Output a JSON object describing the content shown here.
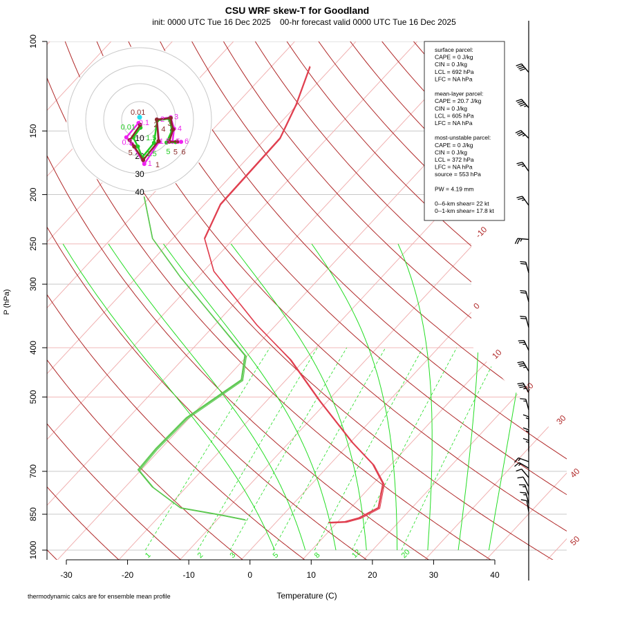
{
  "chart_data": {
    "type": "line",
    "title": "CSU WRF skew-T for Goodland",
    "subtitle": "init: 0000 UTC Tue 16 Dec 2025    00-hr forecast valid 0000 UTC Tue 16 Dec 2025",
    "xlabel": "Temperature (C)",
    "ylabel": "P (hPa)",
    "y_scale": "log",
    "ylim": [
      1000,
      100
    ],
    "x_ticks": [
      "-30",
      "-20",
      "-10",
      "0",
      "10",
      "20",
      "30",
      "40"
    ],
    "y_ticks": [
      "100",
      "150",
      "200",
      "250",
      "300",
      "400",
      "500",
      "700",
      "850",
      "1000"
    ],
    "isotherm_labels": [
      "-10",
      "0",
      "10",
      "20",
      "30",
      "40",
      "50"
    ],
    "mixing_ratio_labels": [
      "1",
      "2",
      "3",
      "5",
      "8",
      "12",
      "20"
    ],
    "footnote": "thermodynamic calcs are for ensemble mean profile",
    "colors": {
      "temperature": "#e04050",
      "dewpoint": "#5cc850",
      "isotherm": "#f0b0b0",
      "dry_adiabat": "#b02828",
      "moist_adiabat": "#22dd22",
      "mixing_ratio": "#22dd22",
      "isobar": "#c8c8c8"
    },
    "series": [
      {
        "name": "temperature",
        "points": [
          [
            112,
            -63.7
          ],
          [
            133,
            -60.2
          ],
          [
            155,
            -57.7
          ],
          [
            209,
            -57.4
          ],
          [
            244,
            -54.8
          ],
          [
            283,
            -48.3
          ],
          [
            361,
            -33.1
          ],
          [
            422,
            -22.4
          ],
          [
            509,
            -11.3
          ],
          [
            614,
            0.3
          ],
          [
            679,
            7.1
          ],
          [
            741,
            11.7
          ],
          [
            826,
            14.6
          ],
          [
            865,
            13.0
          ],
          [
            880,
            11.3
          ],
          [
            883,
            8.7
          ]
        ]
      },
      {
        "name": "dewpoint",
        "points": [
          [
            202,
            -71
          ],
          [
            244,
            -63.3
          ],
          [
            290,
            -53
          ],
          [
            415,
            -30.3
          ],
          [
            463,
            -27.2
          ],
          [
            550,
            -30.4
          ],
          [
            632,
            -30.7
          ],
          [
            696,
            -30.4
          ],
          [
            752,
            -25.5
          ],
          [
            826,
            -17.8
          ],
          [
            853,
            -10.1
          ],
          [
            872,
            -5.4
          ]
        ]
      }
    ],
    "hodograph": {
      "rings": [
        "10",
        "20",
        "30",
        "40"
      ],
      "traces": [
        {
          "color": "#ee22ee",
          "points": [
            [
              -0.6,
              -1.9
            ],
            [
              -7.4,
              -9.9
            ],
            [
              -4.2,
              -13.6
            ],
            [
              2.6,
              -24.7
            ],
            [
              10.9,
              -12.4
            ],
            [
              9.6,
              0
            ],
            [
              17.3,
              1.3
            ],
            [
              19.2,
              -5.1
            ],
            [
              18.3,
              -12.4
            ],
            [
              23.1,
              -12.4
            ]
          ],
          "labels": [
            "0.1",
            "0.5",
            "",
            "1",
            "1.5",
            "2",
            "3",
            "4",
            "5",
            "6"
          ]
        },
        {
          "color": "#22cc22",
          "points": [
            [
              0.5,
              -4.5
            ],
            [
              -3.5,
              -10
            ],
            [
              -1,
              -15
            ],
            [
              1.5,
              -21
            ],
            [
              8,
              -13
            ],
            [
              9.8,
              -0.5
            ],
            [
              16.5,
              0.5
            ],
            [
              18,
              -6
            ],
            [
              15,
              -12.8
            ],
            [
              20,
              -12.5
            ]
          ],
          "labels": [
            "0.01",
            "",
            "",
            "1.5",
            "1.5",
            "",
            "",
            "",
            "5",
            ""
          ]
        },
        {
          "color": "#8b2a2a",
          "points": [
            [
              0.3,
              -3
            ],
            [
              -5.5,
              -11.5
            ],
            [
              -3,
              -15
            ],
            [
              2,
              -22.5
            ],
            [
              10.5,
              -12
            ],
            [
              9.6,
              0
            ],
            [
              17.3,
              0.8
            ],
            [
              18.6,
              -5.5
            ],
            [
              16.5,
              -12.3
            ],
            [
              21,
              -12.3
            ]
          ],
          "labels": [
            "0.01",
            "",
            "5",
            "1",
            "",
            "2",
            "3",
            "4",
            "5",
            "6"
          ]
        }
      ],
      "storm_motion": [
        0,
        1.3
      ]
    },
    "wind_barbs": [
      {
        "p": 115,
        "dir": 320,
        "kt": 40
      },
      {
        "p": 135,
        "dir": 320,
        "kt": 45
      },
      {
        "p": 155,
        "dir": 315,
        "kt": 35
      },
      {
        "p": 180,
        "dir": 325,
        "kt": 25
      },
      {
        "p": 210,
        "dir": 325,
        "kt": 25
      },
      {
        "p": 245,
        "dir": 275,
        "kt": 25
      },
      {
        "p": 285,
        "dir": 345,
        "kt": 20
      },
      {
        "p": 325,
        "dir": 345,
        "kt": 20
      },
      {
        "p": 365,
        "dir": 345,
        "kt": 20
      },
      {
        "p": 405,
        "dir": 335,
        "kt": 25
      },
      {
        "p": 445,
        "dir": 330,
        "kt": 35
      },
      {
        "p": 490,
        "dir": 330,
        "kt": 35
      },
      {
        "p": 530,
        "dir": 345,
        "kt": 15
      },
      {
        "p": 575,
        "dir": 0,
        "kt": 15
      },
      {
        "p": 610,
        "dir": 0,
        "kt": 15
      },
      {
        "p": 640,
        "dir": 0,
        "kt": 15
      },
      {
        "p": 670,
        "dir": 290,
        "kt": 15
      },
      {
        "p": 690,
        "dir": 300,
        "kt": 15
      },
      {
        "p": 720,
        "dir": 320,
        "kt": 10
      },
      {
        "p": 750,
        "dir": 330,
        "kt": 10
      },
      {
        "p": 780,
        "dir": 340,
        "kt": 15
      },
      {
        "p": 810,
        "dir": 345,
        "kt": 15
      },
      {
        "p": 840,
        "dir": 350,
        "kt": 10
      }
    ]
  },
  "parcel_box": {
    "lines": [
      "surface parcel:",
      "CAPE = 0 J/kg",
      "CIN = 0 J/kg",
      "LCL = 692 hPa",
      "LFC = NA hPa",
      "",
      "mean-layer parcel:",
      "CAPE = 20.7 J/kg",
      "CIN = 0 J/kg",
      "LCL = 605 hPa",
      "LFC = NA hPa",
      "",
      "most-unstable parcel:",
      "CAPE = 0 J/kg",
      "CIN = 0 J/kg",
      "LCL = 372 hPa",
      "LFC = NA hPa",
      "source = 553 hPa",
      "",
      "PW =  4.19 mm",
      "",
      "0--6-km shear= 22 kt",
      "0--1-km shear= 17.8 kt"
    ]
  }
}
